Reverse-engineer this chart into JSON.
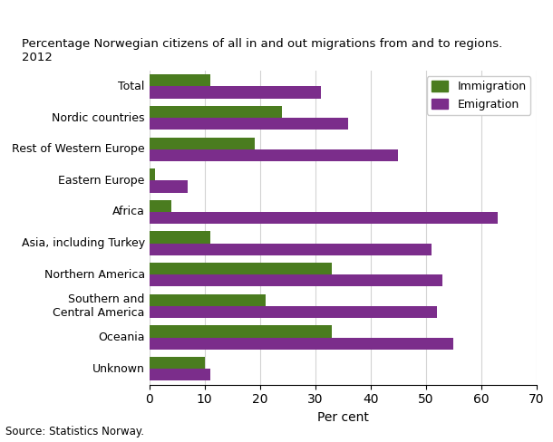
{
  "title_line1": "Percentage Norwegian citizens of all in and out migrations from and to regions.",
  "title_line2": "2012",
  "categories": [
    "Total",
    "Nordic countries",
    "Rest of Western Europe",
    "Eastern Europe",
    "Africa",
    "Asia, including Turkey",
    "Northern America",
    "Southern and\nCentral America",
    "Oceania",
    "Unknown"
  ],
  "immigration": [
    11,
    24,
    19,
    1,
    4,
    11,
    33,
    21,
    33,
    10
  ],
  "emigration": [
    31,
    36,
    45,
    7,
    63,
    51,
    53,
    52,
    55,
    11
  ],
  "immigration_color": "#4a7c1f",
  "emigration_color": "#7b2d8b",
  "xlabel": "Per cent",
  "xlim": [
    0,
    70
  ],
  "xticks": [
    0,
    10,
    20,
    30,
    40,
    50,
    60,
    70
  ],
  "source": "Source: Statistics Norway.",
  "legend_immigration": "Immigration",
  "legend_emigration": "Emigration",
  "bar_height": 0.38,
  "figsize": [
    6.1,
    4.88
  ],
  "dpi": 100
}
